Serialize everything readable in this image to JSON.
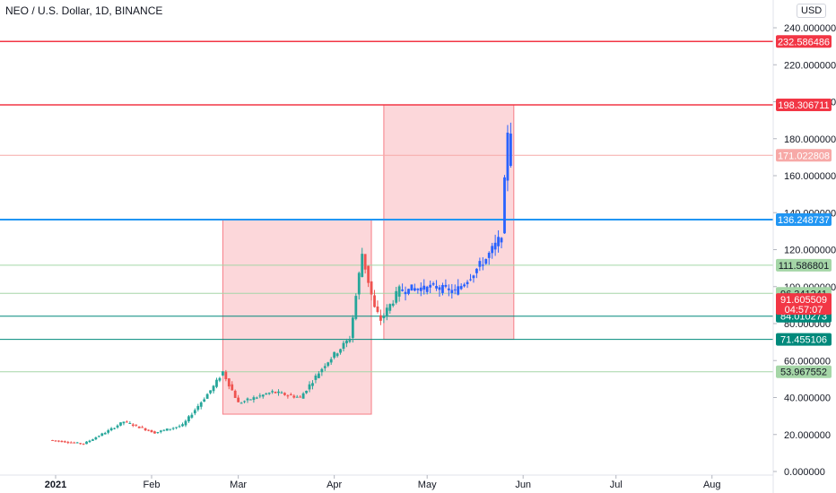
{
  "header": {
    "title": "NEO / U.S. Dollar, 1D, BINANCE",
    "currency": "USD"
  },
  "chart_data": {
    "type": "candlestick",
    "title": "NEO / U.S. Dollar, 1D, BINANCE",
    "ylim": [
      0,
      245
    ],
    "y_ticks": [
      "0.000000",
      "20.000000",
      "40.000000",
      "60.000000",
      "80.000000",
      "100.000000",
      "120.000000",
      "140.000000",
      "160.000000",
      "180.000000",
      "200.000000",
      "220.000000",
      "240.000000"
    ],
    "x_ticks": [
      {
        "label": "2021",
        "day": 0,
        "bold": true
      },
      {
        "label": "Feb",
        "day": 31
      },
      {
        "label": "Mar",
        "day": 59
      },
      {
        "label": "Apr",
        "day": 90
      },
      {
        "label": "May",
        "day": 120
      },
      {
        "label": "Jun",
        "day": 151
      },
      {
        "label": "Jul",
        "day": 181
      },
      {
        "label": "Aug",
        "day": 212
      }
    ],
    "levels": [
      {
        "value": 232.586486,
        "label": "232.586486",
        "color": "#f23645",
        "width": 1.5
      },
      {
        "value": 198.306711,
        "label": "198.306711",
        "color": "#f23645",
        "width": 1.5
      },
      {
        "value": 171.022808,
        "label": "171.022808",
        "color": "#f7a9a7",
        "width": 1
      },
      {
        "value": 136.248737,
        "label": "136.248737",
        "color": "#2196f3",
        "width": 2
      },
      {
        "value": 111.586801,
        "label": "111.586801",
        "color": "#a5d6a7",
        "width": 1
      },
      {
        "value": 96.341241,
        "label": "96.341241",
        "color": "#a5d6a7",
        "width": 1
      },
      {
        "value": 84.010273,
        "label": "84.010273",
        "color": "#00897b",
        "width": 1
      },
      {
        "value": 71.455106,
        "label": "71.455106",
        "color": "#00897b",
        "width": 1
      },
      {
        "value": 53.967552,
        "label": "53.967552",
        "color": "#a5d6a7",
        "width": 1
      }
    ],
    "last_price": {
      "value": 91.605509,
      "label": "91.605509",
      "countdown": "04:57:07",
      "color": "#f23645"
    },
    "zones": [
      {
        "x0": 54,
        "x1": 102,
        "y0": 31,
        "y1": 136.2
      },
      {
        "x0": 106,
        "x1": 148,
        "y0": 71.5,
        "y1": 198.3
      }
    ],
    "segments": [
      {
        "d0": -1,
        "d1": 10,
        "p0": 17,
        "p1": 15,
        "color": "#ef5350"
      },
      {
        "d0": 10,
        "d1": 18,
        "p0": 15,
        "p1": 22,
        "color": "#26a69a"
      },
      {
        "d0": 18,
        "d1": 23,
        "p0": 22,
        "p1": 27,
        "color": "#26a69a"
      },
      {
        "d0": 23,
        "d1": 33,
        "p0": 27,
        "p1": 21,
        "color": "#ef5350"
      },
      {
        "d0": 33,
        "d1": 42,
        "p0": 21,
        "p1": 25,
        "color": "#26a69a"
      },
      {
        "d0": 42,
        "d1": 52,
        "p0": 25,
        "p1": 46,
        "color": "#26a69a"
      },
      {
        "d0": 52,
        "d1": 55,
        "p0": 46,
        "p1": 54,
        "color": "#26a69a"
      },
      {
        "d0": 55,
        "d1": 60,
        "p0": 54,
        "p1": 37,
        "color": "#ef5350"
      },
      {
        "d0": 60,
        "d1": 71,
        "p0": 37,
        "p1": 43,
        "color": "#26a69a"
      },
      {
        "d0": 71,
        "d1": 80,
        "p0": 43,
        "p1": 40,
        "color": "#ef5350"
      },
      {
        "d0": 80,
        "d1": 88,
        "p0": 40,
        "p1": 58,
        "color": "#26a69a"
      },
      {
        "d0": 88,
        "d1": 96,
        "p0": 58,
        "p1": 72,
        "color": "#26a69a"
      },
      {
        "d0": 96,
        "d1": 100,
        "p0": 72,
        "p1": 118,
        "color": "#26a69a"
      },
      {
        "d0": 100,
        "d1": 104,
        "p0": 118,
        "p1": 88,
        "color": "#ef5350"
      },
      {
        "d0": 104,
        "d1": 106,
        "p0": 88,
        "p1": 82,
        "color": "#ef5350"
      },
      {
        "d0": 106,
        "d1": 112,
        "p0": 82,
        "p1": 98,
        "color": "#26a69a"
      },
      {
        "d0": 112,
        "d1": 124,
        "p0": 98,
        "p1": 100,
        "color": "#2962ff"
      },
      {
        "d0": 124,
        "d1": 130,
        "p0": 100,
        "p1": 97,
        "color": "#2962ff"
      },
      {
        "d0": 130,
        "d1": 140,
        "p0": 97,
        "p1": 115,
        "color": "#2962ff"
      },
      {
        "d0": 140,
        "d1": 145,
        "p0": 115,
        "p1": 127,
        "color": "#2962ff"
      },
      {
        "d0": 145,
        "d1": 147,
        "p0": 127,
        "p1": 185,
        "color": "#2962ff"
      },
      {
        "d0": 147,
        "d1": 148,
        "p0": 185,
        "p1": 168,
        "color": "#2962ff"
      }
    ]
  }
}
